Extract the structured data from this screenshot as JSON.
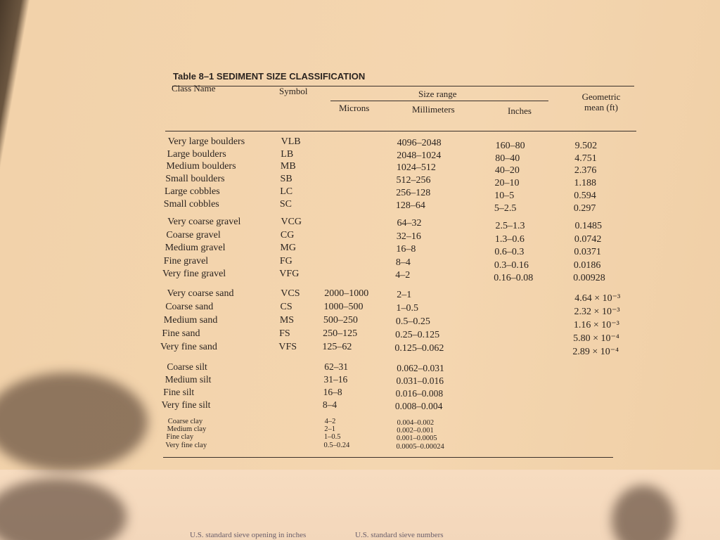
{
  "table": {
    "title": "Table 8–1 SEDIMENT SIZE CLASSIFICATION",
    "headers": {
      "class_name": "Class Name",
      "symbol": "Symbol",
      "size_range": "Size range",
      "microns": "Microns",
      "millimeters": "Millimeters",
      "inches": "Inches",
      "geometric_mean": "Geometric mean (ft)"
    },
    "groups": [
      {
        "rows": [
          [
            "Very large boulders",
            "VLB",
            null,
            "4096–2048",
            "160–80",
            "9.502"
          ],
          [
            "Large boulders",
            "LB",
            null,
            "2048–1024",
            "80–40",
            "4.751"
          ],
          [
            "Medium boulders",
            "MB",
            null,
            "1024–512",
            "40–20",
            "2.376"
          ],
          [
            "Small boulders",
            "SB",
            null,
            "512–256",
            "20–10",
            "1.188"
          ],
          [
            "Large cobbles",
            "LC",
            null,
            "256–128",
            "10–5",
            "0.594"
          ],
          [
            "Small cobbles",
            "SC",
            null,
            "128–64",
            "5–2.5",
            "0.297"
          ]
        ]
      },
      {
        "rows": [
          [
            "Very coarse gravel",
            "VCG",
            null,
            "64–32",
            "2.5–1.3",
            "0.1485"
          ],
          [
            "Coarse gravel",
            "CG",
            null,
            "32–16",
            "1.3–0.6",
            "0.0742"
          ],
          [
            "Medium gravel",
            "MG",
            null,
            "16–8",
            "0.6–0.3",
            "0.0371"
          ],
          [
            "Fine gravel",
            "FG",
            null,
            "8–4",
            "0.3–0.16",
            "0.0186"
          ],
          [
            "Very fine gravel",
            "VFG",
            null,
            "4–2",
            "0.16–0.08",
            "0.00928"
          ]
        ]
      },
      {
        "rows": [
          [
            "Very coarse sand",
            "VCS",
            "2000–1000",
            "2–1",
            null,
            "4.64 × 10⁻³"
          ],
          [
            "Coarse sand",
            "CS",
            "1000–500",
            "1–0.5",
            null,
            "2.32 × 10⁻³"
          ],
          [
            "Medium sand",
            "MS",
            "500–250",
            "0.5–0.25",
            null,
            "1.16 × 10⁻³"
          ],
          [
            "Fine sand",
            "FS",
            "250–125",
            "0.25–0.125",
            null,
            "5.80 × 10⁻⁴"
          ],
          [
            "Very fine sand",
            "VFS",
            "125–62",
            "0.125–0.062",
            null,
            "2.89 × 10⁻⁴"
          ]
        ]
      },
      {
        "rows": [
          [
            "Coarse silt",
            null,
            "62–31",
            "0.062–0.031",
            null,
            null
          ],
          [
            "Medium silt",
            null,
            "31–16",
            "0.031–0.016",
            null,
            null
          ],
          [
            "Fine silt",
            null,
            "16–8",
            "0.016–0.008",
            null,
            null
          ],
          [
            "Very fine silt",
            null,
            "8–4",
            "0.008–0.004",
            null,
            null
          ]
        ]
      },
      {
        "rows": [
          [
            "Coarse clay",
            null,
            "4–2",
            "0.004–0.002",
            null,
            null
          ],
          [
            "Medium clay",
            null,
            "2–1",
            "0.002–0.001",
            null,
            null
          ],
          [
            "Fine clay",
            null,
            "1–0.5",
            "0.001–0.0005",
            null,
            null
          ],
          [
            "Very fine clay",
            null,
            "0.5–0.24",
            "0.0005–0.00024",
            null,
            null
          ]
        ]
      }
    ]
  },
  "footer": {
    "left": "U.S. standard sieve opening in inches",
    "right": "U.S. standard sieve numbers"
  }
}
